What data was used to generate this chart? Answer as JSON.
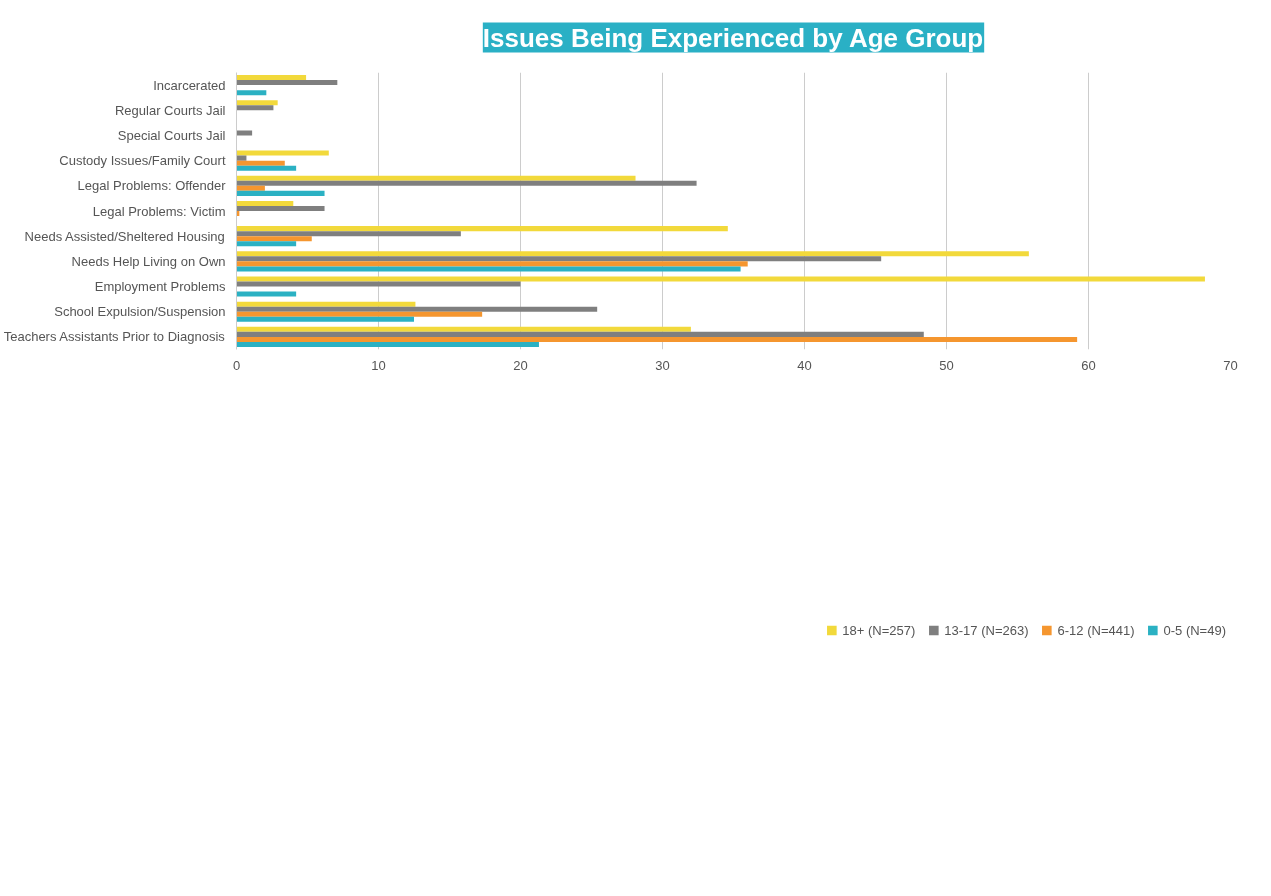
{
  "chart_data": {
    "type": "bar",
    "orientation": "horizontal",
    "title": "Issues Being Experienced by Age Group",
    "categories": [
      "Incarcerated",
      "Regular Courts Jail",
      "Special Courts Jail",
      "Custody Issues/Family Court",
      "Legal Problems: Offender",
      "Legal Problems: Victim",
      "Needs Assisted/Sheltered Housing",
      "Needs Help Living on Own",
      "Employment Problems",
      "School Expulsion/Suspension",
      "Teachers Assistants Prior to Diagnosis"
    ],
    "series": [
      {
        "name": "18+ (N=257)",
        "color": "#f2d93b",
        "values": [
          4.9,
          2.9,
          null,
          6.5,
          28.1,
          4.0,
          34.6,
          55.8,
          68.2,
          12.6,
          32.0
        ]
      },
      {
        "name": "13-17 (N=263)",
        "color": "#7f7f7f",
        "values": [
          7.1,
          2.6,
          1.1,
          0.7,
          32.4,
          6.2,
          15.8,
          45.4,
          20.0,
          25.4,
          48.4
        ]
      },
      {
        "name": "6-12 (N=441)",
        "color": "#f5962f",
        "values": [
          null,
          null,
          null,
          3.4,
          2.0,
          0.2,
          5.3,
          36.0,
          null,
          17.3,
          59.2
        ]
      },
      {
        "name": "0-5 (N=49)",
        "color": "#2bb1c3",
        "values": [
          2.1,
          null,
          null,
          4.2,
          6.2,
          null,
          4.2,
          35.5,
          4.2,
          12.5,
          21.3
        ]
      }
    ],
    "xlim": [
      0,
      70
    ],
    "xticks": [
      0,
      10,
      20,
      30,
      40,
      50,
      60,
      70
    ],
    "grid": "x",
    "legend": "bottom"
  }
}
